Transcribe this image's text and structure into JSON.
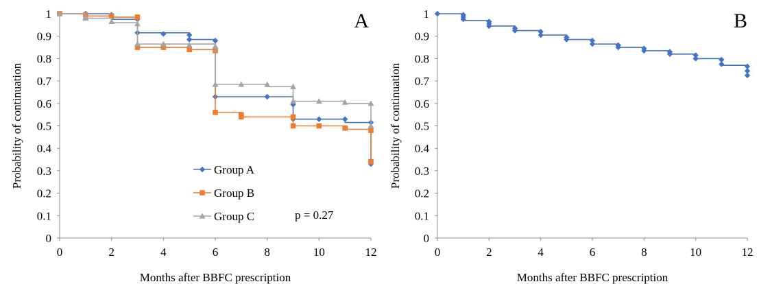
{
  "chart_data": [
    {
      "type": "line",
      "panel_label": "A",
      "xlabel": "Months after BBFC prescription",
      "ylabel": "Probability of continuation",
      "xlim": [
        0,
        12
      ],
      "ylim": [
        0,
        1
      ],
      "xticks": [
        "0",
        "2",
        "4",
        "6",
        "8",
        "10",
        "12"
      ],
      "yticks": [
        "0",
        "0.1",
        "0.2",
        "0.3",
        "0.4",
        "0.5",
        "0.6",
        "0.7",
        "0.8",
        "0.9",
        "1"
      ],
      "grid": false,
      "legend_position": "bottom-left",
      "annotation": "p = 0.27",
      "series": [
        {
          "name": "Group A",
          "color": "#4472C4",
          "marker": "diamond",
          "steps": [
            [
              0,
              1.0
            ],
            [
              1,
              1.0
            ],
            [
              2,
              0.975
            ],
            [
              3,
              0.915
            ],
            [
              5,
              0.885
            ],
            [
              6,
              0.63
            ],
            [
              9,
              0.53
            ],
            [
              11,
              0.515
            ],
            [
              12,
              0.33
            ]
          ],
          "markers": [
            [
              0,
              1.0
            ],
            [
              1,
              1.0
            ],
            [
              2,
              0.995
            ],
            [
              3,
              0.975
            ],
            [
              3,
              0.915
            ],
            [
              4,
              0.91
            ],
            [
              5,
              0.905
            ],
            [
              5,
              0.885
            ],
            [
              6,
              0.88
            ],
            [
              6,
              0.63
            ],
            [
              8,
              0.63
            ],
            [
              9,
              0.595
            ],
            [
              9,
              0.53
            ],
            [
              10,
              0.53
            ],
            [
              11,
              0.53
            ],
            [
              12,
              0.515
            ],
            [
              12,
              0.33
            ]
          ]
        },
        {
          "name": "Group B",
          "color": "#ED7D31",
          "marker": "square",
          "steps": [
            [
              0,
              1.0
            ],
            [
              1,
              0.99
            ],
            [
              2,
              0.985
            ],
            [
              3,
              0.85
            ],
            [
              5,
              0.84
            ],
            [
              6,
              0.56
            ],
            [
              7,
              0.54
            ],
            [
              9,
              0.5
            ],
            [
              11,
              0.485
            ],
            [
              12,
              0.34
            ]
          ],
          "markers": [
            [
              0,
              1.0
            ],
            [
              1,
              0.995
            ],
            [
              2,
              0.99
            ],
            [
              3,
              0.985
            ],
            [
              3,
              0.85
            ],
            [
              4,
              0.85
            ],
            [
              5,
              0.84
            ],
            [
              6,
              0.835
            ],
            [
              6,
              0.56
            ],
            [
              7,
              0.55
            ],
            [
              7,
              0.54
            ],
            [
              9,
              0.54
            ],
            [
              9,
              0.5
            ],
            [
              10,
              0.5
            ],
            [
              11,
              0.49
            ],
            [
              12,
              0.48
            ],
            [
              12,
              0.34
            ]
          ]
        },
        {
          "name": "Group C",
          "color": "#A5A5A5",
          "marker": "triangle",
          "steps": [
            [
              0,
              1.0
            ],
            [
              1,
              0.98
            ],
            [
              2,
              0.96
            ],
            [
              3,
              0.865
            ],
            [
              6,
              0.685
            ],
            [
              8,
              0.675
            ],
            [
              9,
              0.61
            ],
            [
              11,
              0.6
            ],
            [
              12,
              0.5
            ]
          ],
          "markers": [
            [
              0,
              1.0
            ],
            [
              1,
              0.985
            ],
            [
              1,
              0.98
            ],
            [
              2,
              0.965
            ],
            [
              3,
              0.955
            ],
            [
              3,
              0.865
            ],
            [
              4,
              0.865
            ],
            [
              5,
              0.86
            ],
            [
              6,
              0.855
            ],
            [
              6,
              0.685
            ],
            [
              7,
              0.685
            ],
            [
              8,
              0.685
            ],
            [
              9,
              0.675
            ],
            [
              9,
              0.61
            ],
            [
              10,
              0.61
            ],
            [
              11,
              0.605
            ],
            [
              12,
              0.6
            ],
            [
              12,
              0.5
            ]
          ]
        }
      ]
    },
    {
      "type": "line",
      "panel_label": "B",
      "xlabel": "Months after BBFC prescription",
      "ylabel": "Probability of continuation",
      "xlim": [
        0,
        12
      ],
      "ylim": [
        0,
        1
      ],
      "xticks": [
        "0",
        "2",
        "4",
        "6",
        "8",
        "10",
        "12"
      ],
      "yticks": [
        "0",
        "0.1",
        "0.2",
        "0.3",
        "0.4",
        "0.5",
        "0.6",
        "0.7",
        "0.8",
        "0.9",
        "1"
      ],
      "grid": false,
      "series": [
        {
          "color": "#4472C4",
          "marker": "diamond",
          "steps": [
            [
              0,
              1.0
            ],
            [
              1,
              0.97
            ],
            [
              2,
              0.945
            ],
            [
              3,
              0.925
            ],
            [
              4,
              0.905
            ],
            [
              5,
              0.885
            ],
            [
              6,
              0.865
            ],
            [
              7,
              0.85
            ],
            [
              8,
              0.835
            ],
            [
              9,
              0.82
            ],
            [
              10,
              0.8
            ],
            [
              11,
              0.77
            ],
            [
              12,
              0.725
            ]
          ],
          "markers": [
            [
              0,
              1.0
            ],
            [
              1,
              0.995
            ],
            [
              1,
              0.985
            ],
            [
              1,
              0.975
            ],
            [
              2,
              0.965
            ],
            [
              2,
              0.955
            ],
            [
              2,
              0.945
            ],
            [
              3,
              0.935
            ],
            [
              3,
              0.925
            ],
            [
              4,
              0.92
            ],
            [
              4,
              0.905
            ],
            [
              5,
              0.895
            ],
            [
              5,
              0.885
            ],
            [
              6,
              0.88
            ],
            [
              6,
              0.865
            ],
            [
              7,
              0.86
            ],
            [
              7,
              0.85
            ],
            [
              8,
              0.845
            ],
            [
              8,
              0.835
            ],
            [
              9,
              0.83
            ],
            [
              9,
              0.82
            ],
            [
              10,
              0.815
            ],
            [
              10,
              0.8
            ],
            [
              11,
              0.795
            ],
            [
              11,
              0.775
            ],
            [
              12,
              0.765
            ],
            [
              12,
              0.745
            ],
            [
              12,
              0.725
            ]
          ]
        }
      ]
    }
  ]
}
